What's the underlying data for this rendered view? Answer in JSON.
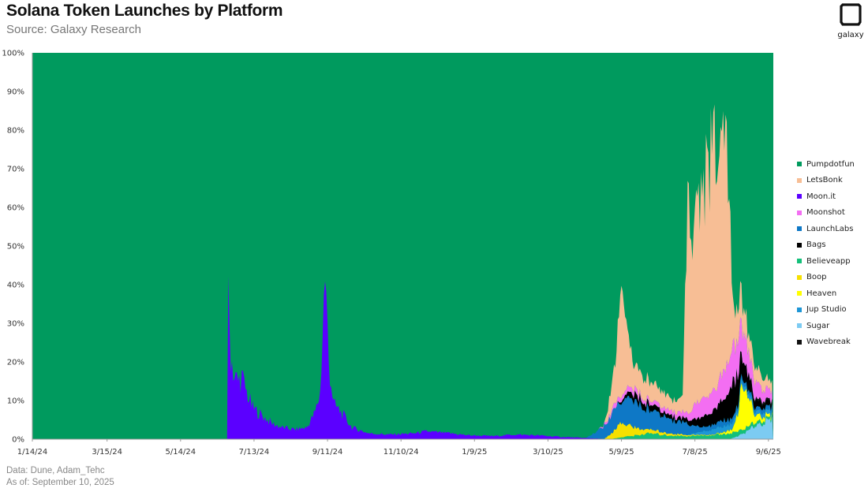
{
  "header": {
    "title": "Solana Token Launches by Platform",
    "subtitle": "Source: Galaxy Research"
  },
  "logo": {
    "label": "galaxy",
    "icon": "galaxy-logo-icon"
  },
  "footer": {
    "data_source": "Data: Dune, Adam_Tehc",
    "as_of": "As of: September 10, 2025"
  },
  "chart_data": {
    "type": "area",
    "stacked": true,
    "percent": true,
    "title": "Solana Token Launches by Platform",
    "ylim": [
      0,
      100
    ],
    "y_ticks": [
      "0%",
      "10%",
      "20%",
      "30%",
      "40%",
      "50%",
      "60%",
      "70%",
      "80%",
      "90%",
      "100%"
    ],
    "x_ticks": [
      "1/14/24",
      "3/15/24",
      "5/14/24",
      "7/13/24",
      "9/11/24",
      "11/10/24",
      "1/9/25",
      "3/10/25",
      "5/9/25",
      "7/8/25",
      "9/6/25"
    ],
    "x_start": "2024-01-14",
    "x_end": "2025-09-10",
    "legend_position": "right",
    "grid": false,
    "colors": {
      "Pumpdotfun": "#009a5e",
      "LetsBonk": "#f7be95",
      "Moon.it": "#5b00ff",
      "Moonshot": "#f36ef2",
      "LaunchLabs": "#0e78c6",
      "Bags": "#000000",
      "Believeapp": "#14c07a",
      "Boop": "#f6e000",
      "Heaven": "#ffff00",
      "Jup Studio": "#1e96d6",
      "Sugar": "#7ccbf2",
      "Wavebreak": "#111111"
    },
    "legend": [
      "Pumpdotfun",
      "LetsBonk",
      "Moon.it",
      "Moonshot",
      "LaunchLabs",
      "Bags",
      "Believeapp",
      "Boop",
      "Heaven",
      "Jup Studio",
      "Sugar",
      "Wavebreak"
    ],
    "series": [
      {
        "name": "Moon.it",
        "points": [
          [
            "2024-06-21",
            0
          ],
          [
            "2024-06-22",
            35
          ],
          [
            "2024-06-24",
            22
          ],
          [
            "2024-06-27",
            16
          ],
          [
            "2024-06-30",
            15
          ],
          [
            "2024-07-03",
            16
          ],
          [
            "2024-07-07",
            12
          ],
          [
            "2024-07-12",
            8
          ],
          [
            "2024-07-20",
            6
          ],
          [
            "2024-07-28",
            4
          ],
          [
            "2024-08-05",
            3
          ],
          [
            "2024-08-15",
            2.5
          ],
          [
            "2024-08-25",
            3
          ],
          [
            "2024-09-01",
            7
          ],
          [
            "2024-09-05",
            12
          ],
          [
            "2024-09-09",
            43
          ],
          [
            "2024-09-12",
            20
          ],
          [
            "2024-09-16",
            9
          ],
          [
            "2024-09-22",
            7
          ],
          [
            "2024-10-01",
            3
          ],
          [
            "2024-10-15",
            1.5
          ],
          [
            "2024-11-01",
            1.2
          ],
          [
            "2024-11-20",
            1.5
          ],
          [
            "2024-12-01",
            2
          ],
          [
            "2024-12-20",
            1.5
          ],
          [
            "2025-01-05",
            1
          ],
          [
            "2025-01-25",
            0.8
          ],
          [
            "2025-02-10",
            1.2
          ],
          [
            "2025-03-01",
            1
          ],
          [
            "2025-03-20",
            0.6
          ],
          [
            "2025-04-10",
            0.3
          ],
          [
            "2025-04-25",
            0.1
          ],
          [
            "2025-05-10",
            0
          ],
          [
            "2025-09-10",
            0
          ]
        ]
      },
      {
        "name": "Sugar",
        "points": [
          [
            "2025-08-05",
            0
          ],
          [
            "2025-08-10",
            0.5
          ],
          [
            "2025-08-20",
            2
          ],
          [
            "2025-08-28",
            4
          ],
          [
            "2025-09-05",
            4.5
          ],
          [
            "2025-09-10",
            5
          ]
        ]
      },
      {
        "name": "Believeapp",
        "points": [
          [
            "2025-05-01",
            0
          ],
          [
            "2025-05-10",
            0.5
          ],
          [
            "2025-06-01",
            1.5
          ],
          [
            "2025-06-15",
            1
          ],
          [
            "2025-07-01",
            0.8
          ],
          [
            "2025-07-20",
            1
          ],
          [
            "2025-08-05",
            1.5
          ],
          [
            "2025-08-20",
            1
          ],
          [
            "2025-09-10",
            0.5
          ]
        ]
      },
      {
        "name": "Heaven",
        "points": [
          [
            "2025-07-25",
            0
          ],
          [
            "2025-08-08",
            1
          ],
          [
            "2025-08-12",
            5
          ],
          [
            "2025-08-16",
            12
          ],
          [
            "2025-08-20",
            8
          ],
          [
            "2025-08-26",
            2
          ],
          [
            "2025-09-03",
            1
          ],
          [
            "2025-09-10",
            0.5
          ]
        ]
      },
      {
        "name": "Boop",
        "points": [
          [
            "2025-04-25",
            0
          ],
          [
            "2025-05-03",
            2
          ],
          [
            "2025-05-10",
            4
          ],
          [
            "2025-05-20",
            2
          ],
          [
            "2025-06-01",
            1
          ],
          [
            "2025-06-20",
            0.5
          ],
          [
            "2025-07-10",
            0.2
          ],
          [
            "2025-09-10",
            0
          ]
        ]
      },
      {
        "name": "Jup Studio",
        "points": [
          [
            "2025-07-01",
            0
          ],
          [
            "2025-07-15",
            1
          ],
          [
            "2025-08-01",
            1.5
          ],
          [
            "2025-08-20",
            1
          ],
          [
            "2025-09-10",
            1
          ]
        ]
      },
      {
        "name": "LaunchLabs",
        "points": [
          [
            "2025-04-10",
            0
          ],
          [
            "2025-04-20",
            2
          ],
          [
            "2025-05-01",
            5
          ],
          [
            "2025-05-10",
            6
          ],
          [
            "2025-05-20",
            7
          ],
          [
            "2025-06-01",
            5
          ],
          [
            "2025-06-15",
            4
          ],
          [
            "2025-07-01",
            3
          ],
          [
            "2025-07-15",
            1
          ],
          [
            "2025-08-01",
            1.5
          ],
          [
            "2025-08-20",
            1
          ],
          [
            "2025-09-10",
            1
          ]
        ]
      },
      {
        "name": "Bags",
        "points": [
          [
            "2025-05-05",
            0
          ],
          [
            "2025-05-12",
            1
          ],
          [
            "2025-05-20",
            2
          ],
          [
            "2025-06-01",
            1.5
          ],
          [
            "2025-06-15",
            1
          ],
          [
            "2025-07-01",
            1
          ],
          [
            "2025-07-20",
            3
          ],
          [
            "2025-08-01",
            5
          ],
          [
            "2025-08-08",
            9
          ],
          [
            "2025-08-15",
            6
          ],
          [
            "2025-08-25",
            2
          ],
          [
            "2025-09-10",
            1
          ]
        ]
      },
      {
        "name": "Wavebreak",
        "points": [
          [
            "2025-08-20",
            0
          ],
          [
            "2025-08-28",
            0.5
          ],
          [
            "2025-09-10",
            0.5
          ]
        ]
      },
      {
        "name": "Moonshot",
        "points": [
          [
            "2025-04-20",
            0
          ],
          [
            "2025-05-01",
            1
          ],
          [
            "2025-05-10",
            1.5
          ],
          [
            "2025-06-01",
            1
          ],
          [
            "2025-07-01",
            1.5
          ],
          [
            "2025-07-10",
            4
          ],
          [
            "2025-07-25",
            5
          ],
          [
            "2025-08-01",
            7
          ],
          [
            "2025-08-10",
            10
          ],
          [
            "2025-08-20",
            6
          ],
          [
            "2025-09-01",
            3
          ],
          [
            "2025-09-10",
            2
          ]
        ]
      },
      {
        "name": "LetsBonk",
        "points": [
          [
            "2025-04-25",
            0
          ],
          [
            "2025-05-03",
            8
          ],
          [
            "2025-05-09",
            28
          ],
          [
            "2025-05-13",
            15
          ],
          [
            "2025-05-20",
            6
          ],
          [
            "2025-06-01",
            5
          ],
          [
            "2025-06-10",
            4
          ],
          [
            "2025-06-20",
            3
          ],
          [
            "2025-06-28",
            4
          ],
          [
            "2025-07-02",
            50
          ],
          [
            "2025-07-07",
            45
          ],
          [
            "2025-07-15",
            55
          ],
          [
            "2025-07-25",
            64
          ],
          [
            "2025-08-01",
            62
          ],
          [
            "2025-08-05",
            45
          ],
          [
            "2025-08-08",
            10
          ],
          [
            "2025-08-14",
            8
          ],
          [
            "2025-08-20",
            5
          ],
          [
            "2025-09-01",
            3
          ],
          [
            "2025-09-10",
            2
          ]
        ]
      }
    ],
    "remainder_series": "Pumpdotfun"
  }
}
